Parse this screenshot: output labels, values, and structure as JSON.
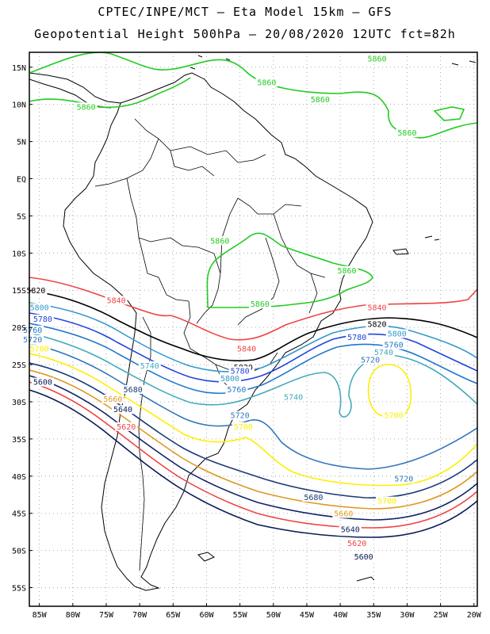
{
  "title_line1": "CPTEC/INPE/MCT —  Eta Model 15km — GFS",
  "title_line2": "Geopotential Height 500hPa — 20/08/2020 12UTC fct=82h",
  "lat_labels": [
    "15N",
    "10N",
    "5N",
    "EQ",
    "5S",
    "10S",
    "15S",
    "20S",
    "25S",
    "30S",
    "35S",
    "40S",
    "45S",
    "50S",
    "55S"
  ],
  "lon_labels": [
    "85W",
    "80W",
    "75W",
    "70W",
    "65W",
    "60W",
    "55W",
    "50W",
    "45W",
    "40W",
    "35W",
    "30W",
    "25W",
    "20W"
  ],
  "colors": {
    "5860": "#22cc22",
    "5840": "#ee4444",
    "5820": "#000000",
    "5800": "#3399cc",
    "5780": "#2244dd",
    "5760": "#2277cc",
    "5740": "#44aabb",
    "5720": "#3377bb",
    "5700": "#ffee00",
    "5680": "#1a3a77",
    "5660": "#dd9922",
    "5640": "#112266",
    "5620": "#ee4444",
    "5600": "#0a1a55"
  },
  "contour_labels": [
    {
      "text": "5860",
      "lon": -51,
      "lat": 12.8
    },
    {
      "text": "5860",
      "lon": -78,
      "lat": 9.5
    },
    {
      "text": "5860",
      "lon": -43,
      "lat": 10.5
    },
    {
      "text": "5860",
      "lon": -34.5,
      "lat": 16
    },
    {
      "text": "5860",
      "lon": -30,
      "lat": 6
    },
    {
      "text": "5860",
      "lon": -58,
      "lat": -8.5
    },
    {
      "text": "5860",
      "lon": -39,
      "lat": -12.5
    },
    {
      "text": "5860",
      "lon": -52,
      "lat": -17
    },
    {
      "text": "5840",
      "lon": -73.5,
      "lat": -16.5
    },
    {
      "text": "5840",
      "lon": -34.5,
      "lat": -17.5
    },
    {
      "text": "5840",
      "lon": -54,
      "lat": -23
    },
    {
      "text": "5820",
      "lon": -85.5,
      "lat": -15.2
    },
    {
      "text": "5820",
      "lon": -34.5,
      "lat": -19.7
    },
    {
      "text": "5820",
      "lon": -54.5,
      "lat": -25.5
    },
    {
      "text": "5800",
      "lon": -85,
      "lat": -17.5
    },
    {
      "text": "5800",
      "lon": -31.5,
      "lat": -21
    },
    {
      "text": "5800",
      "lon": -56.5,
      "lat": -27
    },
    {
      "text": "5780",
      "lon": -84.5,
      "lat": -19
    },
    {
      "text": "5780",
      "lon": -37.5,
      "lat": -21.5
    },
    {
      "text": "5780",
      "lon": -55,
      "lat": -26
    },
    {
      "text": "5760",
      "lon": -32,
      "lat": -22.5
    },
    {
      "text": "5760",
      "lon": -55.5,
      "lat": -28.5
    },
    {
      "text": "5760",
      "lon": -86,
      "lat": -20.5
    },
    {
      "text": "5740",
      "lon": -33.5,
      "lat": -23.5
    },
    {
      "text": "5740",
      "lon": -68.5,
      "lat": -25.3
    },
    {
      "text": "5740",
      "lon": -47,
      "lat": -29.5
    },
    {
      "text": "5720",
      "lon": -86,
      "lat": -21.8
    },
    {
      "text": "5720",
      "lon": -35.5,
      "lat": -24.5
    },
    {
      "text": "5720",
      "lon": -55,
      "lat": -32
    },
    {
      "text": "5720",
      "lon": -30.5,
      "lat": -40.5
    },
    {
      "text": "5700",
      "lon": -85,
      "lat": -23
    },
    {
      "text": "5700",
      "lon": -32,
      "lat": -32
    },
    {
      "text": "5700",
      "lon": -54.5,
      "lat": -33.5
    },
    {
      "text": "5700",
      "lon": -33,
      "lat": -43.5
    },
    {
      "text": "5680",
      "lon": -71,
      "lat": -28.5
    },
    {
      "text": "5680",
      "lon": -44,
      "lat": -43
    },
    {
      "text": "5660",
      "lon": -74,
      "lat": -29.8
    },
    {
      "text": "5660",
      "lon": -39.5,
      "lat": -45.2
    },
    {
      "text": "5640",
      "lon": -72.5,
      "lat": -31.2
    },
    {
      "text": "5640",
      "lon": -38.5,
      "lat": -47.3
    },
    {
      "text": "5620",
      "lon": -72,
      "lat": -33.5
    },
    {
      "text": "5620",
      "lon": -37.5,
      "lat": -49.2
    },
    {
      "text": "5600",
      "lon": -84.5,
      "lat": -27.5
    },
    {
      "text": "5600",
      "lon": -36.5,
      "lat": -51
    }
  ]
}
